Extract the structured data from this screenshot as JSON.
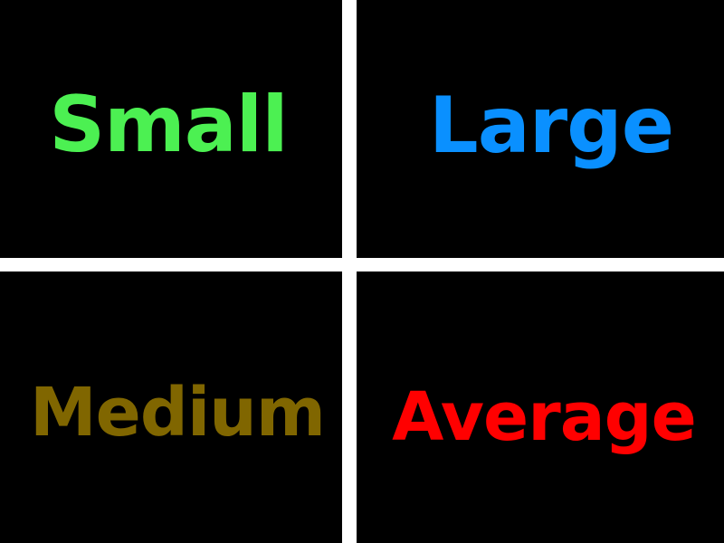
{
  "panels": {
    "top_left": {
      "text": "Small",
      "color": "#4cf052"
    },
    "top_right": {
      "text": "Large",
      "color": "#0a90ff"
    },
    "bottom_left": {
      "text": "Medium",
      "color": "#806600"
    },
    "bottom_right": {
      "text": "Average",
      "color": "#ff0000"
    }
  },
  "colors": {
    "panel_background": "#000000",
    "divider": "#ffffff"
  }
}
